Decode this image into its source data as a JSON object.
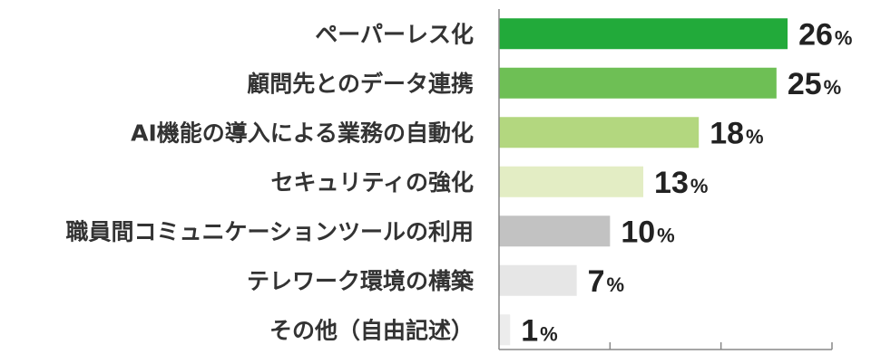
{
  "chart_data": {
    "type": "bar",
    "orientation": "horizontal",
    "categories": [
      "ペーパーレス化",
      "顧問先とのデータ連携",
      "AI機能の導入による業務の自動化",
      "セキュリティの強化",
      "職員間コミュニケーションツールの利用",
      "テレワーク環境の構築",
      "その他（自由記述）"
    ],
    "values": [
      26,
      25,
      18,
      13,
      10,
      7,
      1
    ],
    "value_unit": "%",
    "bar_colors": [
      "#22aa3a",
      "#6ebf55",
      "#b3d77f",
      "#e3edc4",
      "#c2c2c2",
      "#e6e6e6",
      "#ececec"
    ],
    "xlim": [
      0,
      30
    ],
    "grid": false,
    "legend": "none"
  }
}
